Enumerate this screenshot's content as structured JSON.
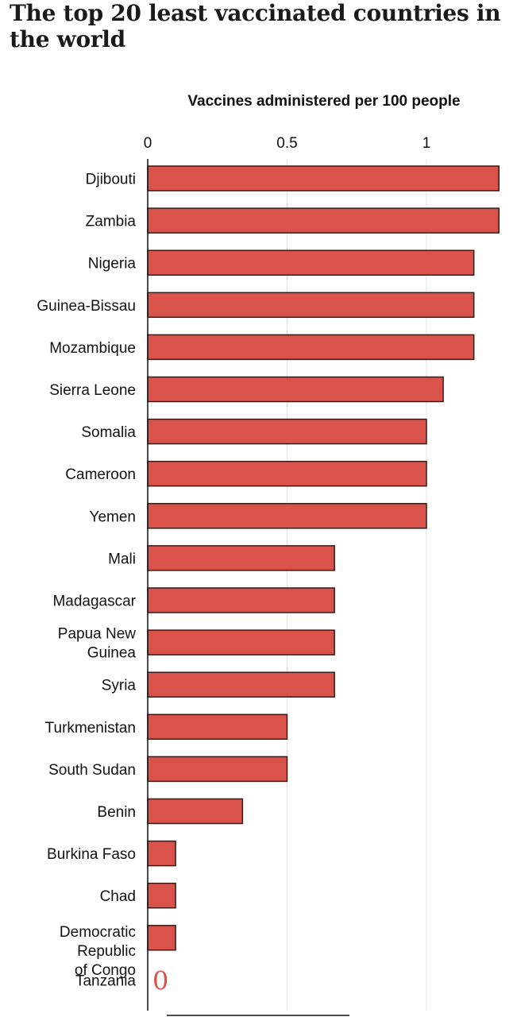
{
  "title": "The top 20 least vaccinated countries in the world",
  "chart_data": {
    "type": "bar",
    "orientation": "horizontal",
    "title": "The top 20 least vaccinated countries in the world",
    "xlabel": "Vaccines administered per 100 people",
    "ylabel": "",
    "xlim": [
      0,
      1.3
    ],
    "x_ticks": [
      "0",
      "0.5",
      "1"
    ],
    "grid": true,
    "categories": [
      [
        "Djibouti"
      ],
      [
        "Zambia"
      ],
      [
        "Nigeria"
      ],
      [
        "Guinea-Bissau"
      ],
      [
        "Mozambique"
      ],
      [
        "Sierra Leone"
      ],
      [
        "Somalia"
      ],
      [
        "Cameroon"
      ],
      [
        "Yemen"
      ],
      [
        "Mali"
      ],
      [
        "Madagascar"
      ],
      [
        "Papua New",
        "Guinea"
      ],
      [
        "Syria"
      ],
      [
        "Turkmenistan"
      ],
      [
        "South Sudan"
      ],
      [
        "Benin"
      ],
      [
        "Burkina Faso"
      ],
      [
        "Chad"
      ],
      [
        "Democratic",
        "Republic",
        "of Congo"
      ],
      [
        "Tanzania"
      ]
    ],
    "values": [
      1.26,
      1.26,
      1.17,
      1.17,
      1.17,
      1.06,
      1.0,
      1.0,
      1.0,
      0.67,
      0.67,
      0.67,
      0.67,
      0.5,
      0.5,
      0.34,
      0.1,
      0.1,
      0.1,
      0
    ],
    "zero_label": "0",
    "bar_color": "#d9534a",
    "bar_stroke": "#3a1a17",
    "zero_label_color": "#d9534a"
  }
}
